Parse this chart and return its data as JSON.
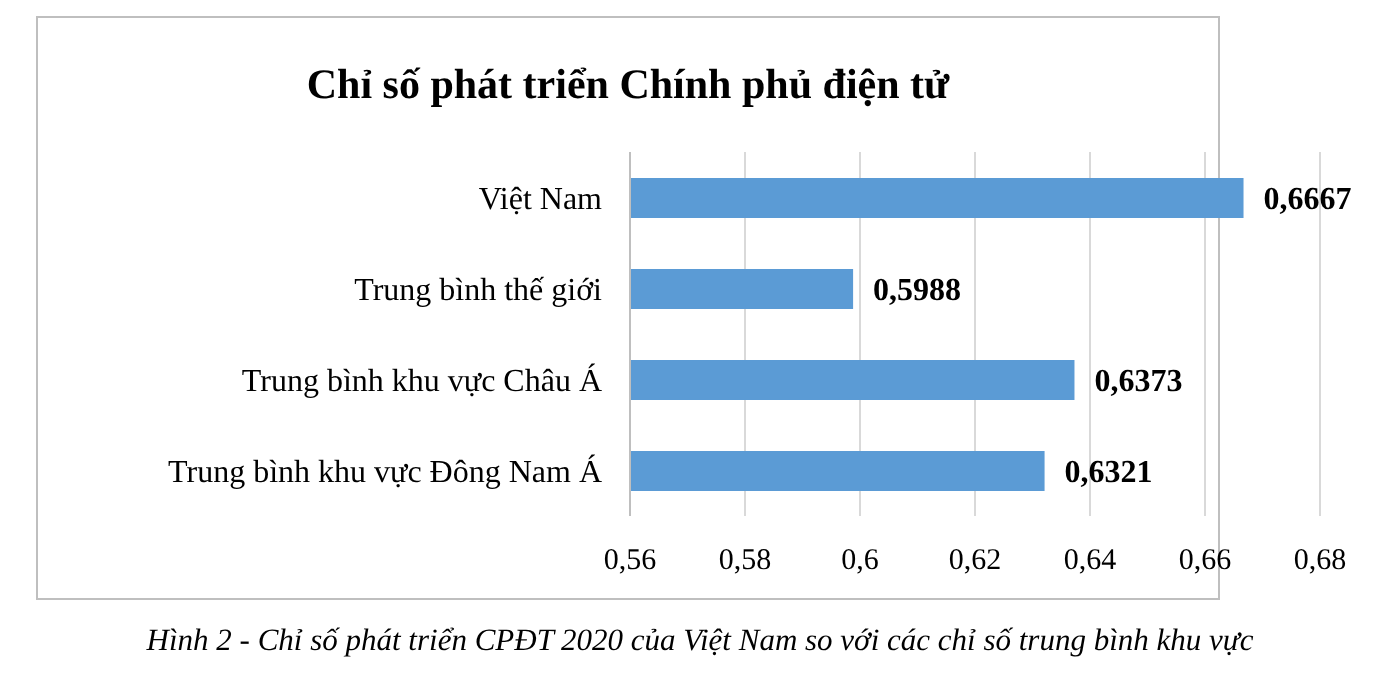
{
  "chart_data": {
    "type": "bar",
    "orientation": "horizontal",
    "title": "Chỉ số phát triển Chính phủ điện tử",
    "categories": [
      "Việt Nam",
      "Trung bình thế giới",
      "Trung bình khu vực Châu Á",
      "Trung bình khu vực Đông Nam Á"
    ],
    "values": [
      0.6667,
      0.5988,
      0.6373,
      0.6321
    ],
    "value_labels": [
      "0,6667",
      "0,5988",
      "0,6373",
      "0,6321"
    ],
    "color": "#5b9bd5",
    "xlim": [
      0.56,
      0.68
    ],
    "xticks": [
      {
        "value": 0.56,
        "label": "0,56"
      },
      {
        "value": 0.58,
        "label": "0,58"
      },
      {
        "value": 0.6,
        "label": "0,6"
      },
      {
        "value": 0.62,
        "label": "0,62"
      },
      {
        "value": 0.64,
        "label": "0,64"
      },
      {
        "value": 0.66,
        "label": "0,66"
      },
      {
        "value": 0.68,
        "label": "0,68"
      }
    ],
    "grid": "x",
    "legend": false,
    "annotations": [
      "Hình 2 - Chỉ số phát triển CPĐT 2020 của Việt Nam so với các chỉ số trung bình khu vực"
    ]
  }
}
